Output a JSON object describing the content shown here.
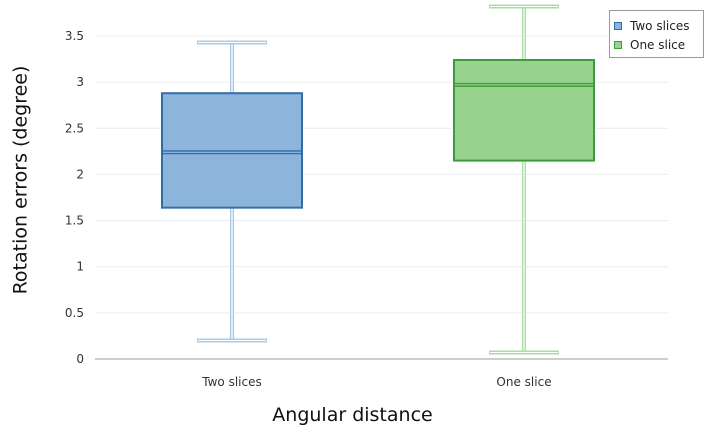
{
  "chart_data": {
    "type": "box",
    "categories": [
      "Two slices",
      "One slice"
    ],
    "series": [
      {
        "name": "Two slices",
        "color": "#2f6fa8",
        "fill": "#8db4da",
        "min": 0.2,
        "q1": 1.64,
        "median": 2.24,
        "q3": 2.88,
        "max": 3.43
      },
      {
        "name": "One slice",
        "color": "#3f9a3a",
        "fill": "#97d38f",
        "min": 0.07,
        "q1": 2.15,
        "median": 2.97,
        "q3": 3.24,
        "max": 3.82
      }
    ],
    "xlabel": "Angular distance",
    "ylabel": "Rotation errors (degree)",
    "ylim": [
      0,
      3.5
    ],
    "yticks": [
      0,
      0.5,
      1,
      1.5,
      2,
      2.5,
      3,
      3.5
    ],
    "ytick_labels": [
      "0",
      "0.5",
      "1",
      "1.5",
      "2",
      "2.5",
      "3",
      "3.5"
    ],
    "grid": true,
    "legend_position": "top-right"
  }
}
